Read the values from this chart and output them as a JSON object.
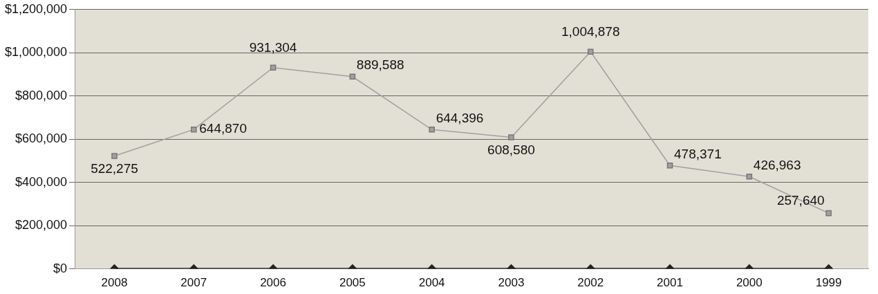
{
  "chart_data": {
    "type": "line",
    "categories": [
      "2008",
      "2007",
      "2006",
      "2005",
      "2004",
      "2003",
      "2002",
      "2001",
      "2000",
      "1999"
    ],
    "series": [
      {
        "color": "#a0a0a0",
        "marker": "square",
        "values": [
          522275,
          644870,
          931304,
          889588,
          644396,
          608580,
          1004878,
          478371,
          426963,
          257640
        ],
        "value_labels": [
          "522,275",
          "644,870",
          "931,304",
          "889,588",
          "644,396",
          "608,580",
          "1,004,878",
          "478,371",
          "426,963",
          "257,640"
        ]
      },
      {
        "color": "#222222",
        "marker": "diamond",
        "values": [
          0,
          0,
          0,
          0,
          0,
          0,
          0,
          0,
          0,
          0
        ]
      }
    ],
    "ylim": [
      0,
      1200000
    ],
    "yticks": [
      {
        "value": 0,
        "label": "$0"
      },
      {
        "value": 200000,
        "label": "$200,000"
      },
      {
        "value": 400000,
        "label": "$400,000"
      },
      {
        "value": 600000,
        "label": "$600,000"
      },
      {
        "value": 800000,
        "label": "$800,000"
      },
      {
        "value": 1000000,
        "label": "$1,000,000"
      },
      {
        "value": 1200000,
        "label": "$1,200,000"
      }
    ],
    "grid": "y",
    "legend": false
  }
}
